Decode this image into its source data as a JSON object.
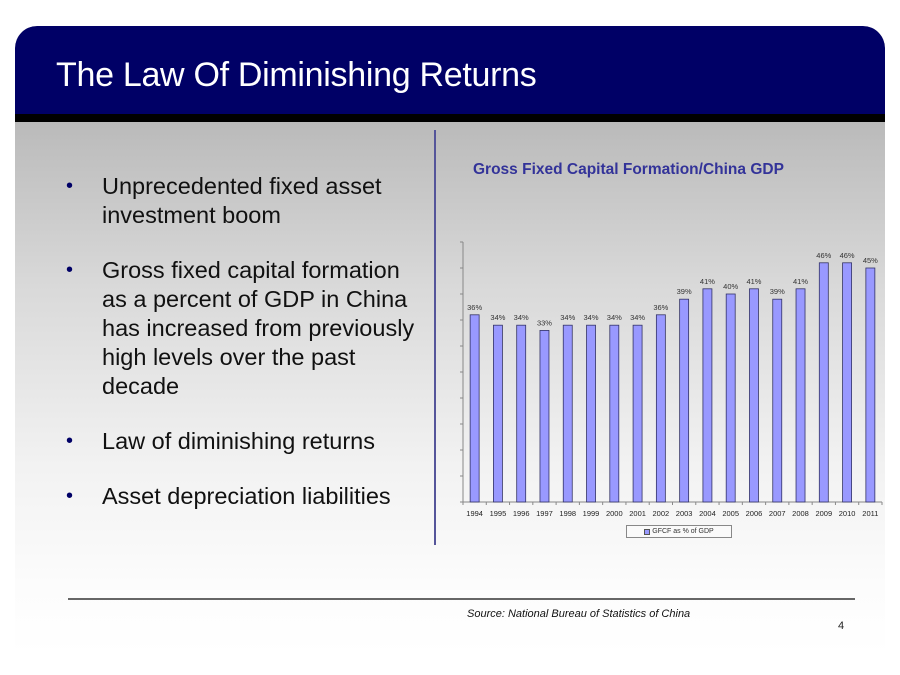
{
  "slide": {
    "title": "The Law Of Diminishing Returns",
    "bullets": [
      "Unprecedented fixed asset investment boom",
      "Gross fixed capital formation as a percent of GDP in China has increased from previously high levels over the past decade",
      "Law of diminishing returns",
      "Asset depreciation liabilities"
    ],
    "bullet_glyph": "•",
    "source": "Source: National Bureau of Statistics of China",
    "page_number": "4",
    "colors": {
      "header": "#000066",
      "chart_title": "#333399",
      "bar": "#9999ff"
    }
  },
  "chart_data": {
    "type": "bar",
    "title": "Gross Fixed Capital Formation/China GDP",
    "xlabel": "",
    "ylabel": "",
    "categories": [
      "1994",
      "1995",
      "1996",
      "1997",
      "1998",
      "1999",
      "2000",
      "2001",
      "2002",
      "2003",
      "2004",
      "2005",
      "2006",
      "2007",
      "2008",
      "2009",
      "2010",
      "2011"
    ],
    "series": [
      {
        "name": "GFCF as % of GDP",
        "values": [
          36,
          34,
          34,
          33,
          34,
          34,
          34,
          34,
          36,
          39,
          41,
          40,
          41,
          39,
          41,
          46,
          46,
          45
        ],
        "labels": [
          "36%",
          "34%",
          "34%",
          "33%",
          "34%",
          "34%",
          "34%",
          "34%",
          "36%",
          "39%",
          "41%",
          "40%",
          "41%",
          "39%",
          "41%",
          "46%",
          "46%",
          "45%"
        ]
      }
    ],
    "ylim": [
      0,
      50
    ],
    "y_ticks_unlabeled": true,
    "grid": false,
    "legend": "bottom"
  }
}
